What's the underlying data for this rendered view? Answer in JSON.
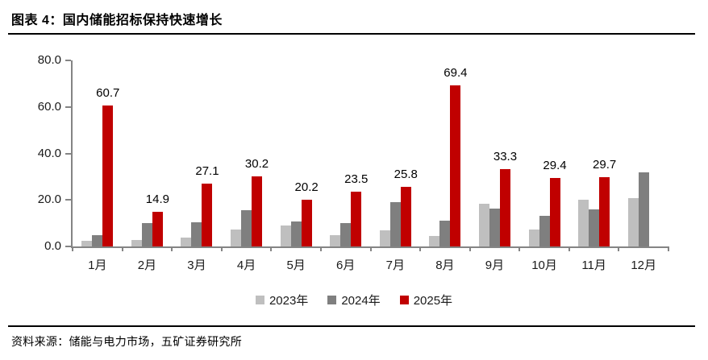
{
  "page": {
    "title": "图表 4：国内储能招标保持快速增长",
    "source": "资料来源：储能与电力市场，五矿证券研究所"
  },
  "chart_data": {
    "type": "bar",
    "title": "国内储能招标保持快速增长",
    "categories": [
      "1月",
      "2月",
      "3月",
      "4月",
      "5月",
      "6月",
      "7月",
      "8月",
      "9月",
      "10月",
      "11月",
      "12月"
    ],
    "series": [
      {
        "name": "2023年",
        "color": "#bfbfbf",
        "values": [
          2.5,
          2.9,
          3.8,
          7.4,
          9.1,
          5.0,
          7.0,
          4.6,
          18.2,
          7.2,
          20.0,
          20.8
        ]
      },
      {
        "name": "2024年",
        "color": "#7f7f7f",
        "values": [
          4.8,
          10.0,
          10.4,
          15.6,
          10.9,
          10.1,
          19.0,
          11.0,
          16.3,
          13.2,
          15.8,
          31.8
        ]
      },
      {
        "name": "2025年",
        "color": "#c00000",
        "values": [
          60.7,
          14.9,
          27.1,
          30.2,
          20.2,
          23.5,
          25.8,
          69.4,
          33.3,
          29.4,
          29.7,
          null
        ],
        "data_labels": [
          "60.7",
          "14.9",
          "27.1",
          "30.2",
          "20.2",
          "23.5",
          "25.8",
          "69.4",
          "33.3",
          "29.4",
          "29.7",
          ""
        ]
      }
    ],
    "xlabel": "",
    "ylabel": "",
    "ylim": [
      0,
      80
    ],
    "yticks": [
      {
        "v": 0,
        "label": "0.0"
      },
      {
        "v": 20,
        "label": "20.0"
      },
      {
        "v": 40,
        "label": "40.0"
      },
      {
        "v": 60,
        "label": "60.0"
      },
      {
        "v": 80,
        "label": "80.0"
      }
    ],
    "grid": false,
    "legend_position": "bottom",
    "axis_color": "#848484"
  }
}
